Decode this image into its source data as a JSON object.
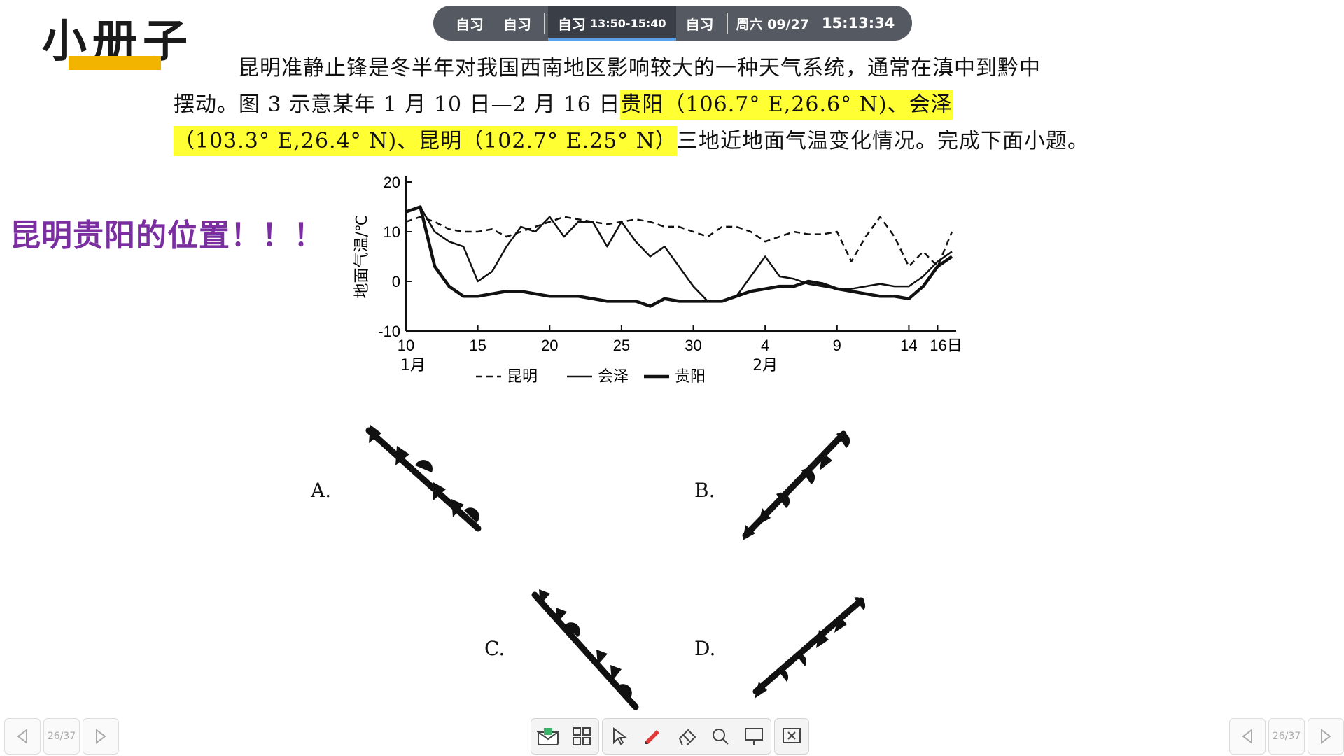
{
  "topbar": {
    "items": [
      "自习",
      "自习"
    ],
    "active_label": "自习",
    "active_time": "13:50-15:40",
    "next_item": "自习",
    "date": "周六 09/27",
    "clock": "15:13:34"
  },
  "brand": {
    "title": "小册子"
  },
  "question": {
    "line1": "昆明准静止锋是冬半年对我国西南地区影响较大的一种天气系统，通常在滇中到黔中",
    "line2_plain": "摆动。图 3 示意某年 1 月 10 日—2 月 16 日",
    "line2_highlight": "贵阳（106.7° E,26.6° N)、会泽",
    "line3_highlight": "（103.3° E,26.4° N)、昆明（102.7° E.25° N）",
    "line3_plain": "三地近地面气温变化情况。完成下面小题。"
  },
  "annotation": {
    "text": "昆明贵阳的位置！！！"
  },
  "chart_data": {
    "type": "line",
    "ylabel": "地面气温/℃",
    "y_ticks": [
      "20",
      "10",
      "0",
      "-10"
    ],
    "ylim": [
      -10,
      20
    ],
    "x_ticks": [
      "10",
      "15",
      "20",
      "25",
      "30",
      "4",
      "9",
      "14",
      "16日"
    ],
    "x_month_labels": [
      "1月",
      "2月"
    ],
    "legend": [
      "昆明",
      "会泽",
      "贵阳"
    ],
    "x": [
      0,
      1,
      2,
      3,
      4,
      5,
      6,
      7,
      8,
      9,
      10,
      11,
      12,
      13,
      14,
      15,
      16,
      17,
      18,
      19,
      20,
      21,
      22,
      23,
      24,
      25,
      26,
      27,
      28,
      29,
      30,
      31,
      32,
      33,
      34,
      35,
      36,
      37,
      38
    ],
    "series": [
      {
        "name": "昆明",
        "style": "dashed",
        "values": [
          12,
          13,
          12,
          10.5,
          10,
          10,
          10.5,
          9,
          10,
          11,
          12,
          13,
          12.5,
          12,
          11.5,
          12,
          12.5,
          12,
          11,
          11,
          10,
          9,
          11,
          11,
          10,
          8,
          9,
          10,
          9.5,
          9.5,
          10,
          4,
          9,
          13,
          9,
          3,
          6,
          3,
          10
        ]
      },
      {
        "name": "会泽",
        "style": "thin",
        "values": [
          14,
          15,
          10,
          8,
          7,
          0,
          2,
          7,
          11,
          10,
          13,
          9,
          12,
          12,
          7,
          12,
          8,
          5,
          7,
          3,
          -1,
          -4,
          -4,
          -3,
          1,
          5,
          1,
          0.5,
          -0.5,
          -1,
          -1.5,
          -1.5,
          -1,
          -0.5,
          -1,
          -1,
          1,
          4,
          6
        ]
      },
      {
        "name": "贵阳",
        "style": "thick",
        "values": [
          14,
          15,
          3,
          -1,
          -3,
          -3,
          -2.5,
          -2,
          -2,
          -2.5,
          -3,
          -3,
          -3,
          -3.5,
          -4,
          -4,
          -4,
          -5,
          -3.5,
          -4,
          -4,
          -4,
          -4,
          -3,
          -2,
          -1.5,
          -1,
          -1,
          0,
          -0.5,
          -1.5,
          -2,
          -2.5,
          -3,
          -3,
          -3.5,
          -1,
          3,
          5
        ]
      }
    ]
  },
  "options": {
    "a": "A.",
    "b": "B.",
    "c": "C.",
    "d": "D."
  },
  "pager": {
    "label": "26/37"
  }
}
